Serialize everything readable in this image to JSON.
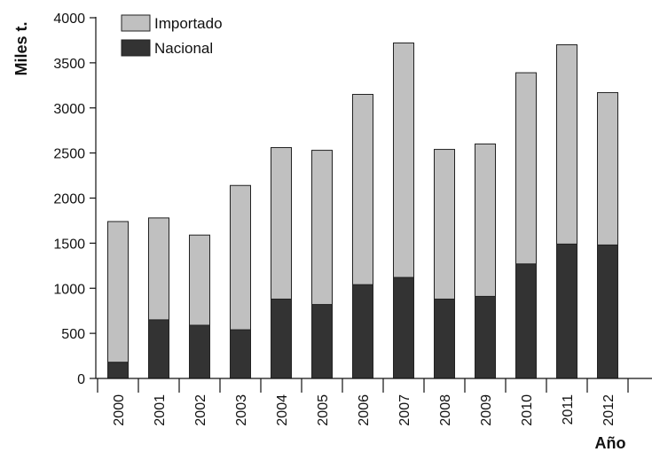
{
  "chart_data": {
    "type": "bar",
    "stacked": true,
    "categories": [
      "2000",
      "2001",
      "2002",
      "2003",
      "2004",
      "2005",
      "2006",
      "2007",
      "2008",
      "2009",
      "2010",
      "2011",
      "2012"
    ],
    "series": [
      {
        "name": "Nacional",
        "color": "#333333",
        "values": [
          180,
          650,
          590,
          540,
          880,
          820,
          1040,
          1120,
          880,
          910,
          1270,
          1490,
          1480
        ]
      },
      {
        "name": "Importado",
        "color": "#c0c0c0",
        "values": [
          1560,
          1130,
          1000,
          1600,
          1680,
          1710,
          2110,
          2600,
          1660,
          1690,
          2120,
          2210,
          1690
        ]
      }
    ],
    "xlabel": "Año",
    "ylabel": "Miles t.",
    "ylim": [
      0,
      4000
    ],
    "yticks": [
      0,
      500,
      1000,
      1500,
      2000,
      2500,
      3000,
      3500,
      4000
    ],
    "grid": false,
    "legend": {
      "position": "top-left",
      "entries": [
        "Importado",
        "Nacional"
      ]
    }
  }
}
